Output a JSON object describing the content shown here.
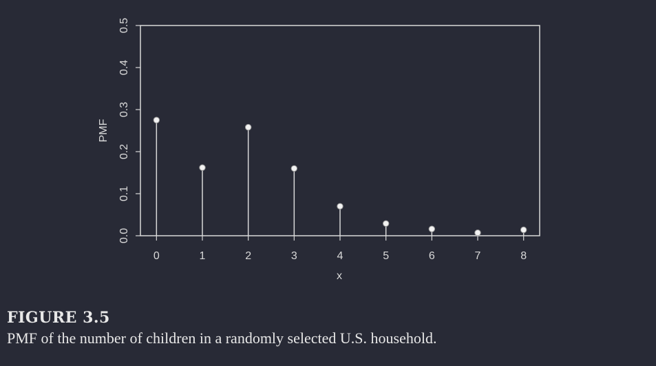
{
  "chart_data": {
    "type": "stem",
    "xlabel": "x",
    "ylabel": "PMF",
    "x": [
      0,
      1,
      2,
      3,
      4,
      5,
      6,
      7,
      8
    ],
    "values": [
      0.275,
      0.162,
      0.258,
      0.16,
      0.07,
      0.029,
      0.016,
      0.007,
      0.014
    ],
    "xlim": [
      -0.35,
      8.35
    ],
    "ylim": [
      0,
      0.5
    ],
    "xticks": [
      "0",
      "1",
      "2",
      "3",
      "4",
      "5",
      "6",
      "7",
      "8"
    ],
    "yticks": [
      "0.0",
      "0.1",
      "0.2",
      "0.3",
      "0.4",
      "0.5"
    ],
    "grid": false,
    "colors": {
      "background": "#282a36",
      "foreground": "#d9d9d9",
      "marker_fill": "#f2f2f2"
    }
  },
  "caption": {
    "label": "FIGURE 3.5",
    "text": "PMF of the number of children in a randomly selected U.S. household."
  }
}
